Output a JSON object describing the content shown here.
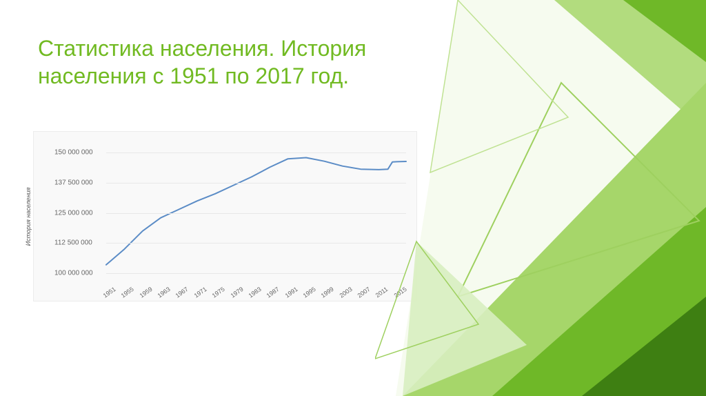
{
  "title": "Статистика населения. История населения с 1951 по 2017 год.",
  "title_color": "#71ba22",
  "title_fontsize": 32,
  "chart": {
    "type": "line",
    "ylabel": "История населения",
    "ylabel_fontsize": 9,
    "background_color": "#f9f9f9",
    "grid_color": "#e8e8e8",
    "line_color": "#5b8cc6",
    "line_width": 2,
    "ylim": [
      100000000,
      153000000
    ],
    "yticks": [
      {
        "v": 100000000,
        "label": "100 000 000"
      },
      {
        "v": 112500000,
        "label": "112 500 000"
      },
      {
        "v": 125000000,
        "label": "125 000 000"
      },
      {
        "v": 137500000,
        "label": "137 500 000"
      },
      {
        "v": 150000000,
        "label": "150 000 000"
      }
    ],
    "xlim": [
      1951,
      2017
    ],
    "xticks": [
      1951,
      1955,
      1959,
      1963,
      1967,
      1971,
      1975,
      1979,
      1983,
      1987,
      1991,
      1995,
      1999,
      2003,
      2007,
      2011,
      2015
    ],
    "series": {
      "x": [
        1951,
        1955,
        1959,
        1963,
        1967,
        1971,
        1975,
        1979,
        1983,
        1987,
        1991,
        1995,
        1999,
        2003,
        2007,
        2011,
        2013,
        2014,
        2015,
        2017
      ],
      "y": [
        103500000,
        110000000,
        117500000,
        123000000,
        126500000,
        130000000,
        133000000,
        136500000,
        140000000,
        144000000,
        147500000,
        148000000,
        146500000,
        144500000,
        143200000,
        143000000,
        143200000,
        146200000,
        146300000,
        146400000
      ]
    }
  },
  "decor": {
    "colors": {
      "light": "#d8eec0",
      "mid": "#a6d66a",
      "dark": "#6fb828",
      "deep": "#3e7f12",
      "stroke": "#9ed05f"
    }
  }
}
